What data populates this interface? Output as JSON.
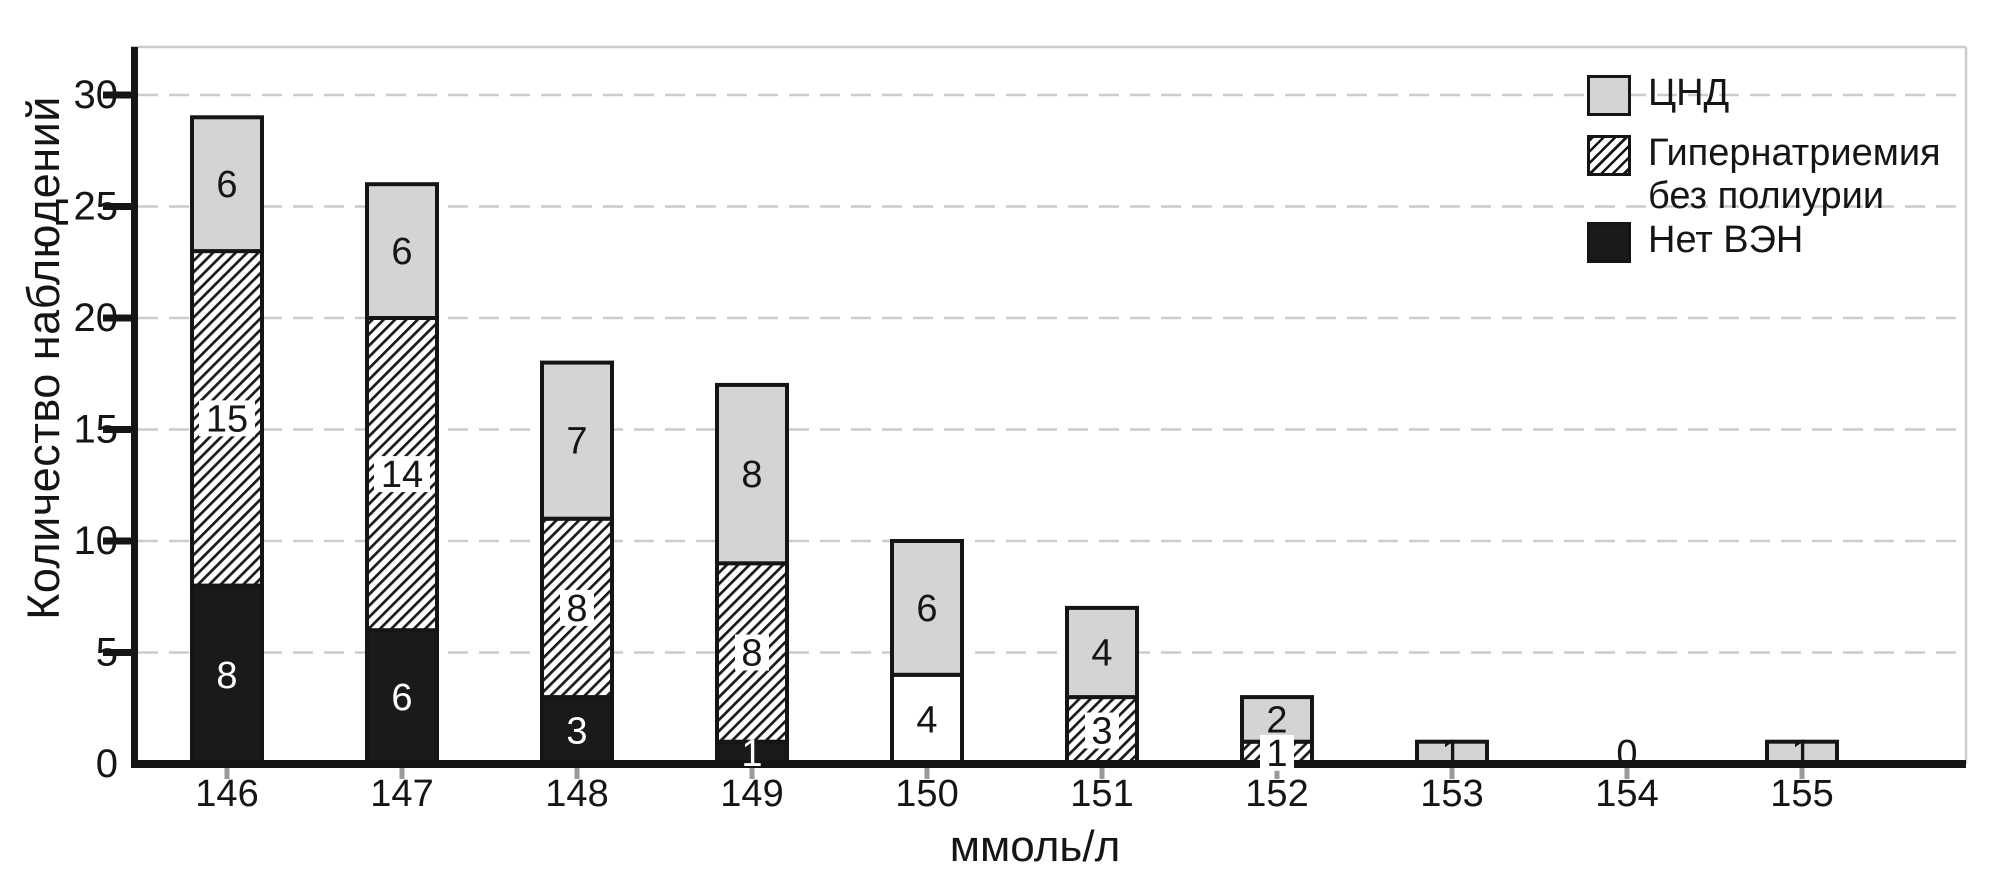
{
  "colors": {
    "bar_gray": "#d4d4d4",
    "bar_black": "#1a1a1a",
    "bar_white": "#ffffff",
    "grid": "#cccccc",
    "frame": "#cccccc",
    "axis": "#151515",
    "text": "#151515",
    "x_tick": "#9a9a9a"
  },
  "legend": {
    "cnd": "ЦНД",
    "hyper_line1": "Гипернатриемия",
    "hyper_line2": "без полиурии",
    "net_ven": "Нет ВЭН"
  },
  "chart_data": {
    "type": "bar",
    "stacked": true,
    "title": "",
    "xlabel": "ммоль/л",
    "ylabel": "Количество наблюдений",
    "categories": [
      "146",
      "147",
      "148",
      "149",
      "150",
      "151",
      "152",
      "153",
      "154",
      "155"
    ],
    "series": [
      {
        "name": "Нет ВЭН",
        "style": "black",
        "values": [
          8,
          6,
          3,
          1,
          0,
          0,
          0,
          0,
          0,
          0
        ]
      },
      {
        "name": "",
        "style": "white",
        "values": [
          0,
          0,
          0,
          0,
          4,
          0,
          0,
          0,
          0,
          0
        ]
      },
      {
        "name": "Гипернатриемия без полиурии",
        "style": "hatch",
        "values": [
          15,
          14,
          8,
          8,
          0,
          3,
          1,
          0,
          0,
          0
        ]
      },
      {
        "name": "ЦНД",
        "style": "gray",
        "values": [
          6,
          6,
          7,
          8,
          6,
          4,
          2,
          1,
          0,
          1
        ]
      }
    ],
    "totals": [
      29,
      26,
      18,
      17,
      10,
      7,
      3,
      1,
      0,
      1
    ],
    "yticks": [
      0,
      5,
      10,
      15,
      20,
      25,
      30
    ],
    "ylim": [
      0,
      32.1
    ],
    "grid": "horizontal-dashed",
    "legend_position": "top-right",
    "legend_order": [
      "ЦНД",
      "Гипернатриемия без полиурии",
      "Нет ВЭН"
    ]
  }
}
